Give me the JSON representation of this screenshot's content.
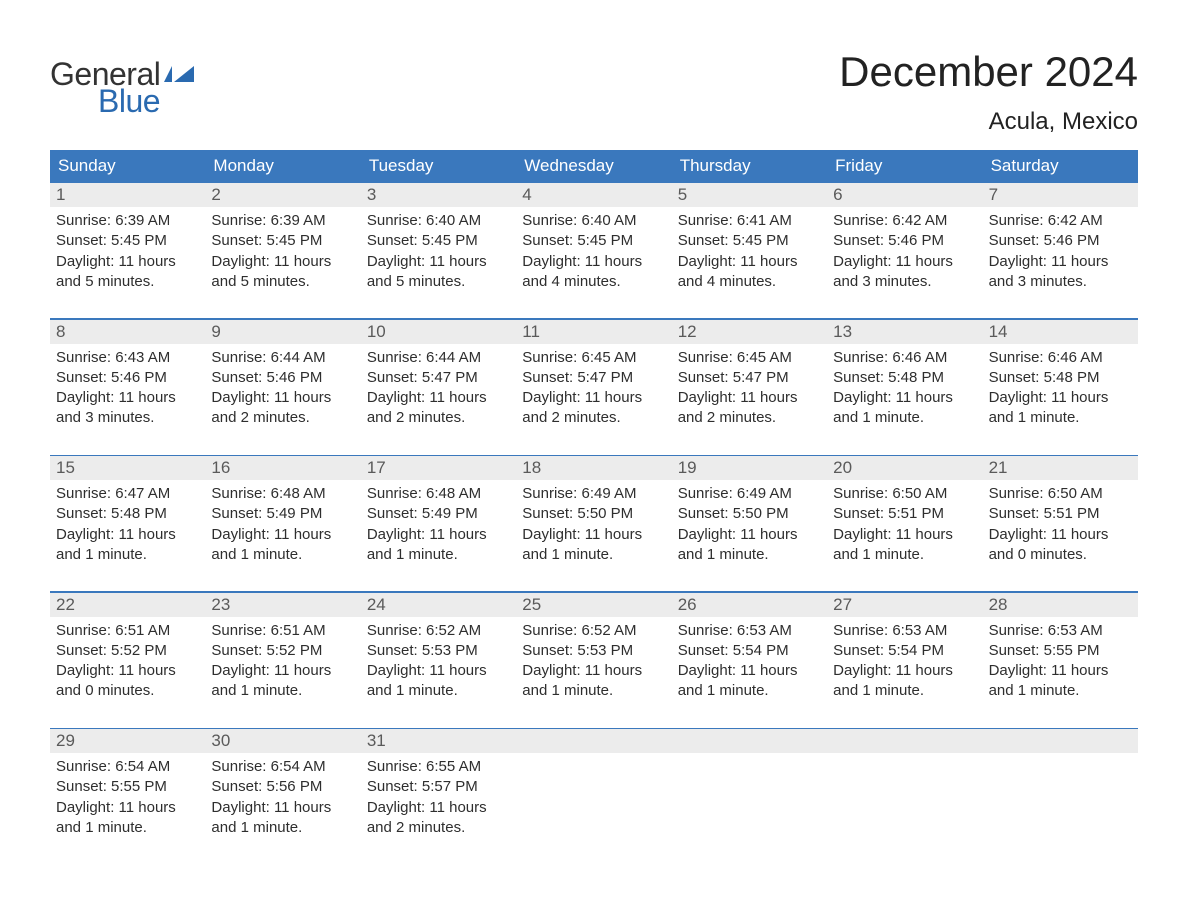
{
  "brand": {
    "word1": "General",
    "word2": "Blue",
    "accent_color": "#2a6ab0"
  },
  "title": "December 2024",
  "location": "Acula, Mexico",
  "colors": {
    "header_bg": "#3a78bd",
    "header_fg": "#ffffff",
    "daynum_bg": "#ececec",
    "daynum_fg": "#5a5a5a",
    "body_text": "#2e2e2e",
    "rule": "#3a78bd",
    "page_bg": "#ffffff"
  },
  "day_labels": [
    "Sunday",
    "Monday",
    "Tuesday",
    "Wednesday",
    "Thursday",
    "Friday",
    "Saturday"
  ],
  "weeks": [
    [
      {
        "n": "1",
        "sunrise": "Sunrise: 6:39 AM",
        "sunset": "Sunset: 5:45 PM",
        "d1": "Daylight: 11 hours",
        "d2": "and 5 minutes."
      },
      {
        "n": "2",
        "sunrise": "Sunrise: 6:39 AM",
        "sunset": "Sunset: 5:45 PM",
        "d1": "Daylight: 11 hours",
        "d2": "and 5 minutes."
      },
      {
        "n": "3",
        "sunrise": "Sunrise: 6:40 AM",
        "sunset": "Sunset: 5:45 PM",
        "d1": "Daylight: 11 hours",
        "d2": "and 5 minutes."
      },
      {
        "n": "4",
        "sunrise": "Sunrise: 6:40 AM",
        "sunset": "Sunset: 5:45 PM",
        "d1": "Daylight: 11 hours",
        "d2": "and 4 minutes."
      },
      {
        "n": "5",
        "sunrise": "Sunrise: 6:41 AM",
        "sunset": "Sunset: 5:45 PM",
        "d1": "Daylight: 11 hours",
        "d2": "and 4 minutes."
      },
      {
        "n": "6",
        "sunrise": "Sunrise: 6:42 AM",
        "sunset": "Sunset: 5:46 PM",
        "d1": "Daylight: 11 hours",
        "d2": "and 3 minutes."
      },
      {
        "n": "7",
        "sunrise": "Sunrise: 6:42 AM",
        "sunset": "Sunset: 5:46 PM",
        "d1": "Daylight: 11 hours",
        "d2": "and 3 minutes."
      }
    ],
    [
      {
        "n": "8",
        "sunrise": "Sunrise: 6:43 AM",
        "sunset": "Sunset: 5:46 PM",
        "d1": "Daylight: 11 hours",
        "d2": "and 3 minutes."
      },
      {
        "n": "9",
        "sunrise": "Sunrise: 6:44 AM",
        "sunset": "Sunset: 5:46 PM",
        "d1": "Daylight: 11 hours",
        "d2": "and 2 minutes."
      },
      {
        "n": "10",
        "sunrise": "Sunrise: 6:44 AM",
        "sunset": "Sunset: 5:47 PM",
        "d1": "Daylight: 11 hours",
        "d2": "and 2 minutes."
      },
      {
        "n": "11",
        "sunrise": "Sunrise: 6:45 AM",
        "sunset": "Sunset: 5:47 PM",
        "d1": "Daylight: 11 hours",
        "d2": "and 2 minutes."
      },
      {
        "n": "12",
        "sunrise": "Sunrise: 6:45 AM",
        "sunset": "Sunset: 5:47 PM",
        "d1": "Daylight: 11 hours",
        "d2": "and 2 minutes."
      },
      {
        "n": "13",
        "sunrise": "Sunrise: 6:46 AM",
        "sunset": "Sunset: 5:48 PM",
        "d1": "Daylight: 11 hours",
        "d2": "and 1 minute."
      },
      {
        "n": "14",
        "sunrise": "Sunrise: 6:46 AM",
        "sunset": "Sunset: 5:48 PM",
        "d1": "Daylight: 11 hours",
        "d2": "and 1 minute."
      }
    ],
    [
      {
        "n": "15",
        "sunrise": "Sunrise: 6:47 AM",
        "sunset": "Sunset: 5:48 PM",
        "d1": "Daylight: 11 hours",
        "d2": "and 1 minute."
      },
      {
        "n": "16",
        "sunrise": "Sunrise: 6:48 AM",
        "sunset": "Sunset: 5:49 PM",
        "d1": "Daylight: 11 hours",
        "d2": "and 1 minute."
      },
      {
        "n": "17",
        "sunrise": "Sunrise: 6:48 AM",
        "sunset": "Sunset: 5:49 PM",
        "d1": "Daylight: 11 hours",
        "d2": "and 1 minute."
      },
      {
        "n": "18",
        "sunrise": "Sunrise: 6:49 AM",
        "sunset": "Sunset: 5:50 PM",
        "d1": "Daylight: 11 hours",
        "d2": "and 1 minute."
      },
      {
        "n": "19",
        "sunrise": "Sunrise: 6:49 AM",
        "sunset": "Sunset: 5:50 PM",
        "d1": "Daylight: 11 hours",
        "d2": "and 1 minute."
      },
      {
        "n": "20",
        "sunrise": "Sunrise: 6:50 AM",
        "sunset": "Sunset: 5:51 PM",
        "d1": "Daylight: 11 hours",
        "d2": "and 1 minute."
      },
      {
        "n": "21",
        "sunrise": "Sunrise: 6:50 AM",
        "sunset": "Sunset: 5:51 PM",
        "d1": "Daylight: 11 hours",
        "d2": "and 0 minutes."
      }
    ],
    [
      {
        "n": "22",
        "sunrise": "Sunrise: 6:51 AM",
        "sunset": "Sunset: 5:52 PM",
        "d1": "Daylight: 11 hours",
        "d2": "and 0 minutes."
      },
      {
        "n": "23",
        "sunrise": "Sunrise: 6:51 AM",
        "sunset": "Sunset: 5:52 PM",
        "d1": "Daylight: 11 hours",
        "d2": "and 1 minute."
      },
      {
        "n": "24",
        "sunrise": "Sunrise: 6:52 AM",
        "sunset": "Sunset: 5:53 PM",
        "d1": "Daylight: 11 hours",
        "d2": "and 1 minute."
      },
      {
        "n": "25",
        "sunrise": "Sunrise: 6:52 AM",
        "sunset": "Sunset: 5:53 PM",
        "d1": "Daylight: 11 hours",
        "d2": "and 1 minute."
      },
      {
        "n": "26",
        "sunrise": "Sunrise: 6:53 AM",
        "sunset": "Sunset: 5:54 PM",
        "d1": "Daylight: 11 hours",
        "d2": "and 1 minute."
      },
      {
        "n": "27",
        "sunrise": "Sunrise: 6:53 AM",
        "sunset": "Sunset: 5:54 PM",
        "d1": "Daylight: 11 hours",
        "d2": "and 1 minute."
      },
      {
        "n": "28",
        "sunrise": "Sunrise: 6:53 AM",
        "sunset": "Sunset: 5:55 PM",
        "d1": "Daylight: 11 hours",
        "d2": "and 1 minute."
      }
    ],
    [
      {
        "n": "29",
        "sunrise": "Sunrise: 6:54 AM",
        "sunset": "Sunset: 5:55 PM",
        "d1": "Daylight: 11 hours",
        "d2": "and 1 minute."
      },
      {
        "n": "30",
        "sunrise": "Sunrise: 6:54 AM",
        "sunset": "Sunset: 5:56 PM",
        "d1": "Daylight: 11 hours",
        "d2": "and 1 minute."
      },
      {
        "n": "31",
        "sunrise": "Sunrise: 6:55 AM",
        "sunset": "Sunset: 5:57 PM",
        "d1": "Daylight: 11 hours",
        "d2": "and 2 minutes."
      },
      null,
      null,
      null,
      null
    ]
  ]
}
